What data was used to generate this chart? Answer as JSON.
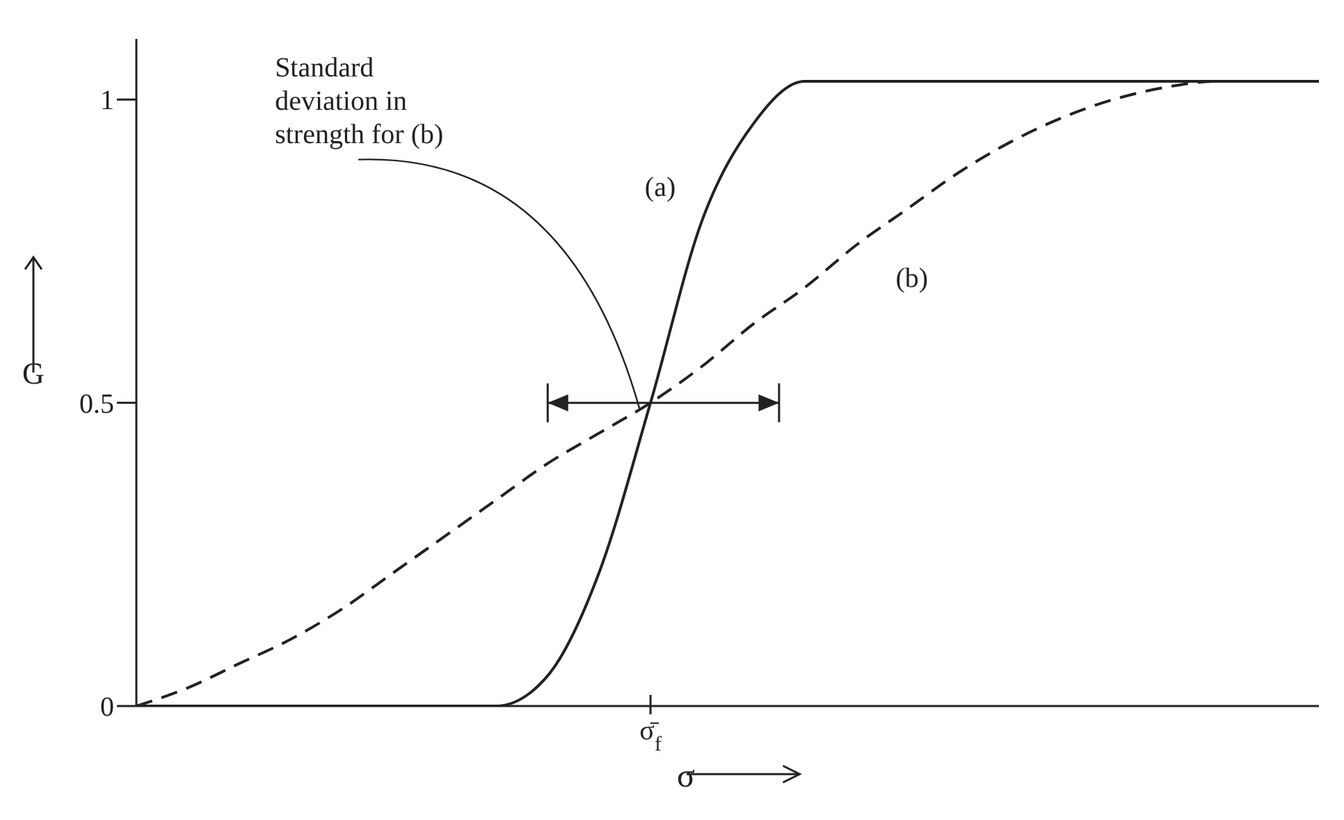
{
  "chart_data": {
    "type": "line",
    "xlabel": "σ",
    "ylabel": "G",
    "categories": [
      null,
      null,
      null,
      null,
      null,
      null,
      null,
      null,
      null,
      null,
      "σ̄$_{f}$",
      null,
      null,
      null,
      null,
      null,
      null,
      null,
      null,
      null,
      null,
      null,
      null,
      null
    ],
    "ylim": [
      0,
      1.1
    ],
    "yticks": [
      0,
      0.5,
      1
    ],
    "marker": "none",
    "series": [
      {
        "name": "(a)",
        "color": "#222222",
        "line_style": "solid",
        "values": [
          0,
          0,
          0,
          0,
          0,
          0,
          0,
          0,
          0.05,
          0.22,
          0.5,
          0.8,
          0.96,
          1.03,
          1.03,
          1.03,
          1.03,
          1.03,
          1.03,
          1.03,
          1.03,
          1.03,
          1.03,
          1.03
        ]
      },
      {
        "name": "(b)",
        "color": "#222222",
        "line_style": "dashed",
        "values": [
          0,
          0.03,
          0.07,
          0.11,
          0.16,
          0.22,
          0.28,
          0.34,
          0.4,
          0.45,
          0.5,
          0.56,
          0.63,
          0.69,
          0.76,
          0.82,
          0.88,
          0.93,
          0.97,
          1.0,
          1.02,
          1.03,
          1.03,
          1.03
        ]
      }
    ],
    "annotations": [
      {
        "text": "Standard deviation in strength for (b)",
        "x": "σ̄$_{f}$",
        "y": 0.5
      }
    ]
  }
}
